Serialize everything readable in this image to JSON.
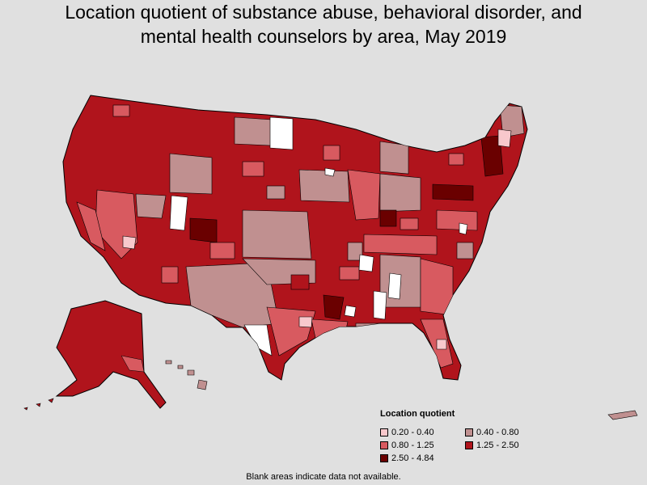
{
  "title_line1": "Location quotient of substance abuse, behavioral disorder, and",
  "title_line2": "mental health counselors by area, May 2019",
  "legend": {
    "title": "Location quotient",
    "items": [
      {
        "label": "0.20 - 0.40",
        "color": "#f8c8cc"
      },
      {
        "label": "0.40 - 0.80",
        "color": "#c09090"
      },
      {
        "label": "0.80 - 1.25",
        "color": "#d85a60"
      },
      {
        "label": "1.25 - 2.50",
        "color": "#b0141c"
      },
      {
        "label": "2.50 - 4.84",
        "color": "#6a0000"
      }
    ]
  },
  "footnote": "Blank areas indicate data not available.",
  "colors": {
    "background": "#e0e0e0",
    "no_data": "#ffffff",
    "border": "#000000"
  }
}
